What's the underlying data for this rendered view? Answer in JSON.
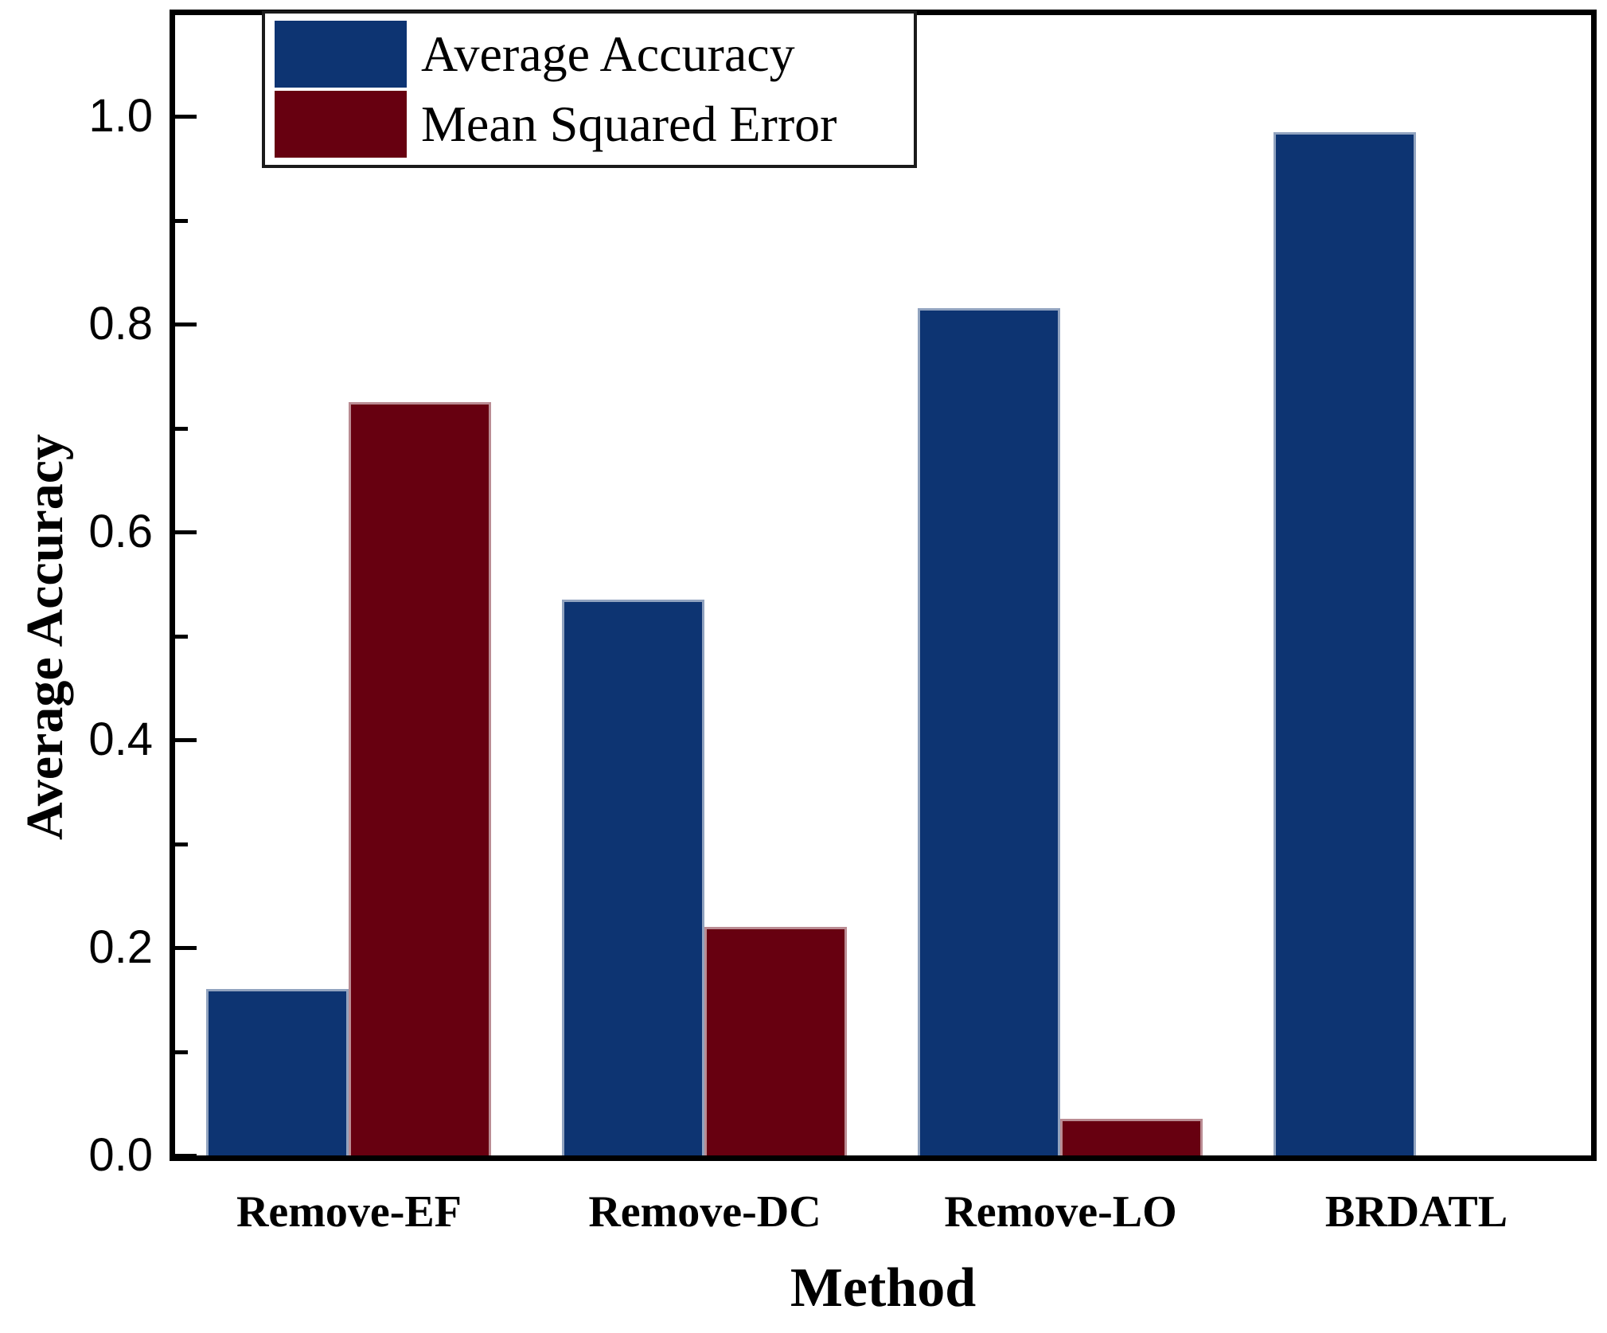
{
  "chart_data": {
    "type": "bar",
    "title": "",
    "xlabel": "Method",
    "ylabel": "Average Accuracy",
    "categories": [
      "Remove-EF",
      "Remove-DC",
      "Remove-LO",
      "BRDATL"
    ],
    "series": [
      {
        "name": "Average Accuracy",
        "color": "#0d3472",
        "values": [
          0.16,
          0.535,
          0.815,
          0.985
        ]
      },
      {
        "name": "Mean Squared Error",
        "color": "#670010",
        "values": [
          0.725,
          0.22,
          0.035,
          0
        ]
      }
    ],
    "ylim": [
      0,
      1.1
    ],
    "yticks_major": [
      0.0,
      0.2,
      0.4,
      0.6,
      0.8,
      1.0
    ],
    "ytick_labels": [
      "0.0",
      "0.2",
      "0.4",
      "0.6",
      "0.8",
      "1.0"
    ],
    "yticks_minor": [
      0.1,
      0.3,
      0.5,
      0.7,
      0.9
    ],
    "legend_position": "top-left",
    "grid": false
  }
}
